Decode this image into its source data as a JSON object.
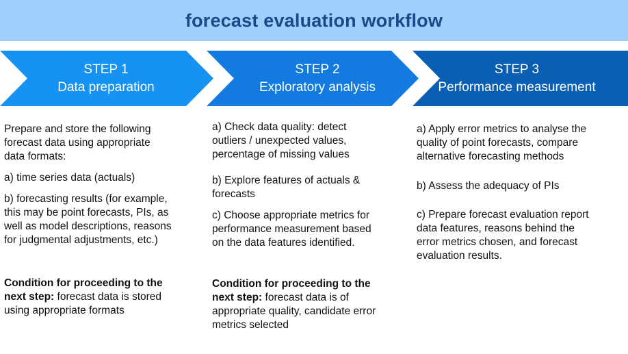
{
  "title": "forecast evaluation workflow",
  "steps": [
    {
      "number": "STEP 1",
      "name": "Data preparation",
      "intro": "Prepare and store the following\nforecast data using appropriate\ndata formats:",
      "items": [
        "a) time series data (actuals)",
        "b) forecasting results (for example,\nthis may be point forecasts, PIs, as\nwell as model descriptions, reasons\nfor judgmental adjustments, etc.)"
      ],
      "condition_label": "Condition for proceeding to the\nnext step:",
      "condition_text": " forecast data is stored\nusing appropriate formats"
    },
    {
      "number": "STEP 2",
      "name": "Exploratory analysis",
      "items": [
        "a) Check data quality: detect\noutliers / unexpected values,\npercentage of missing values",
        "b) Explore features of actuals &\nforecasts",
        "c) Choose appropriate metrics for\nperformance measurement based\non the data features identified."
      ],
      "condition_label": "Condition for proceeding to the\nnext step:",
      "condition_text": " forecast data is of\nappropriate quality, candidate error\nmetrics selected"
    },
    {
      "number": "STEP 3",
      "name": "Performance measurement",
      "items": [
        "a) Apply error metrics to analyse the\nquality of point forecasts, compare\nalternative forecasting methods",
        "b) Assess the adequacy of PIs",
        "c) Prepare forecast evaluation report\ndata features, reasons behind the\nerror metrics chosen, and forecast\nevaluation results."
      ]
    }
  ]
}
